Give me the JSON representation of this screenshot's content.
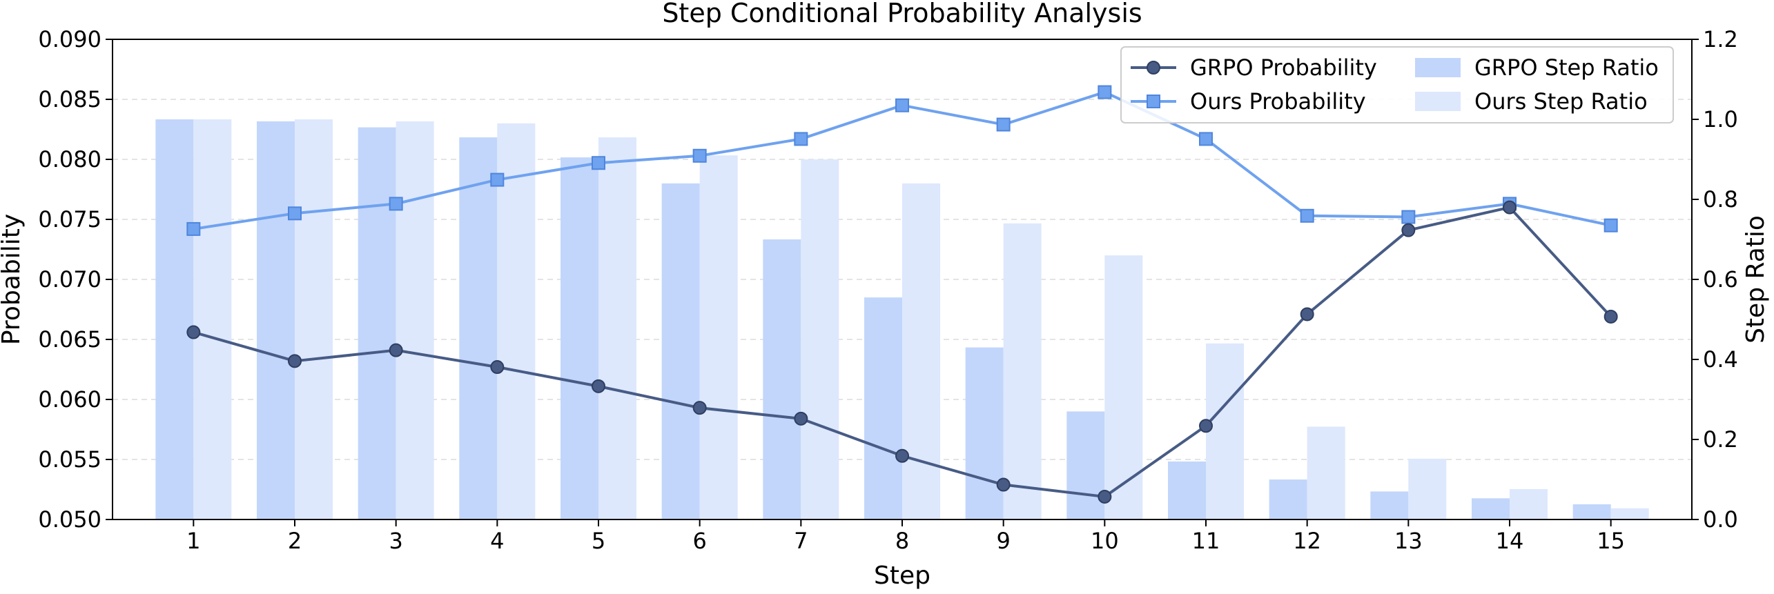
{
  "chart_data": {
    "type": "bar+line",
    "title": "Step Conditional Probability Analysis",
    "xlabel": "Step",
    "ylabel_left": "Probability",
    "ylabel_right": "Step Ratio",
    "categories": [
      "1",
      "2",
      "3",
      "4",
      "5",
      "6",
      "7",
      "8",
      "9",
      "10",
      "11",
      "12",
      "13",
      "14",
      "15"
    ],
    "ylim_left": [
      0.05,
      0.09
    ],
    "ylim_right": [
      0.0,
      1.2
    ],
    "yticks_left": [
      "0.050",
      "0.055",
      "0.060",
      "0.065",
      "0.070",
      "0.075",
      "0.080",
      "0.085",
      "0.090"
    ],
    "yticks_right": [
      "0.0",
      "0.2",
      "0.4",
      "0.6",
      "0.8",
      "1.0",
      "1.2"
    ],
    "grid": "horizontal dashed",
    "legend_position": "top-right",
    "bar_series": [
      {
        "name": "GRPO Step Ratio",
        "axis": "right",
        "color": "#c2d6fb",
        "values": [
          1.0,
          0.995,
          0.98,
          0.955,
          0.905,
          0.84,
          0.7,
          0.555,
          0.43,
          0.27,
          0.145,
          0.1,
          0.07,
          0.053,
          0.038
        ]
      },
      {
        "name": "Ours Step Ratio",
        "axis": "right",
        "color": "#dde8fd",
        "values": [
          1.0,
          1.0,
          0.995,
          0.99,
          0.955,
          0.91,
          0.9,
          0.84,
          0.74,
          0.66,
          0.44,
          0.232,
          0.152,
          0.076,
          0.028
        ]
      }
    ],
    "line_series": [
      {
        "name": "GRPO Probability",
        "axis": "left",
        "color": "#475b85",
        "marker": "circle",
        "values": [
          0.0656,
          0.0632,
          0.0641,
          0.0627,
          0.0611,
          0.0593,
          0.0584,
          0.0553,
          0.0529,
          0.0519,
          0.0578,
          0.0671,
          0.0741,
          0.076,
          0.0669
        ]
      },
      {
        "name": "Ours Probability",
        "axis": "left",
        "color": "#6fa2ef",
        "marker": "square",
        "values": [
          0.0742,
          0.0755,
          0.0763,
          0.0783,
          0.0797,
          0.0803,
          0.0817,
          0.0845,
          0.0829,
          0.0856,
          0.0817,
          0.0753,
          0.0752,
          0.0763,
          0.0745
        ]
      }
    ]
  }
}
